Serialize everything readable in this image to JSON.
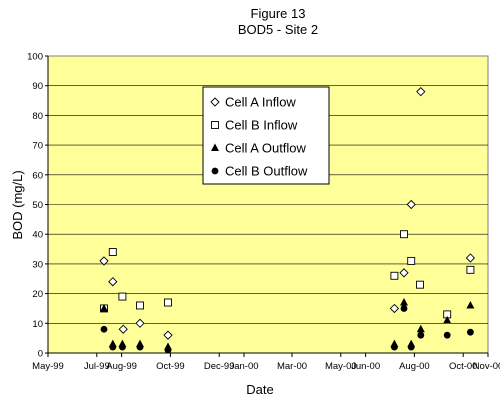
{
  "chart_data": {
    "type": "scatter",
    "title": "Figure 13",
    "subtitle": "BOD5 - Site 2",
    "xlabel": "Date",
    "ylabel": "BOD  (mg/L)",
    "xlim": [
      "1999-05-01",
      "2000-11-01"
    ],
    "ylim": [
      0,
      100
    ],
    "yticks": [
      0,
      10,
      20,
      30,
      40,
      50,
      60,
      70,
      80,
      90,
      100
    ],
    "xticks": [
      {
        "date": "1999-05-01",
        "label": "May-99"
      },
      {
        "date": "1999-07-01",
        "label": "Jul-99"
      },
      {
        "date": "1999-08-01",
        "label": "Aug-99"
      },
      {
        "date": "1999-10-01",
        "label": "Oct-99"
      },
      {
        "date": "1999-12-01",
        "label": "Dec-99"
      },
      {
        "date": "2000-01-01",
        "label": "Jan-00"
      },
      {
        "date": "2000-03-01",
        "label": "Mar-00"
      },
      {
        "date": "2000-05-01",
        "label": "May-00"
      },
      {
        "date": "2000-06-01",
        "label": "Jun-00"
      },
      {
        "date": "2000-08-01",
        "label": "Aug-00"
      },
      {
        "date": "2000-10-01",
        "label": "Oct-00"
      },
      {
        "date": "2000-11-01",
        "label": "Nov-00"
      }
    ],
    "grid": "horizontal",
    "plot_background": "#ffff99",
    "legend_position": "upper-center",
    "series": [
      {
        "name": "Cell A Inflow",
        "marker": "diamond-open",
        "points": [
          {
            "x": "1999-07-10",
            "y": 31
          },
          {
            "x": "1999-07-21",
            "y": 24
          },
          {
            "x": "1999-08-03",
            "y": 8
          },
          {
            "x": "1999-08-24",
            "y": 10
          },
          {
            "x": "1999-09-28",
            "y": 6
          },
          {
            "x": "2000-07-07",
            "y": 15
          },
          {
            "x": "2000-07-19",
            "y": 27
          },
          {
            "x": "2000-07-28",
            "y": 50
          },
          {
            "x": "2000-08-09",
            "y": 88
          },
          {
            "x": "2000-10-10",
            "y": 32
          }
        ]
      },
      {
        "name": "Cell B Inflow",
        "marker": "square-open",
        "points": [
          {
            "x": "1999-07-10",
            "y": 15
          },
          {
            "x": "1999-07-21",
            "y": 34
          },
          {
            "x": "1999-08-02",
            "y": 19
          },
          {
            "x": "1999-08-24",
            "y": 16
          },
          {
            "x": "1999-09-28",
            "y": 17
          },
          {
            "x": "2000-07-07",
            "y": 26
          },
          {
            "x": "2000-07-19",
            "y": 40
          },
          {
            "x": "2000-07-28",
            "y": 31
          },
          {
            "x": "2000-08-08",
            "y": 23
          },
          {
            "x": "2000-09-11",
            "y": 13
          },
          {
            "x": "2000-10-10",
            "y": 28
          }
        ]
      },
      {
        "name": "Cell A Outflow",
        "marker": "triangle-filled",
        "points": [
          {
            "x": "1999-07-10",
            "y": 15
          },
          {
            "x": "1999-07-21",
            "y": 3
          },
          {
            "x": "1999-08-02",
            "y": 3
          },
          {
            "x": "1999-08-24",
            "y": 3
          },
          {
            "x": "1999-09-28",
            "y": 2
          },
          {
            "x": "2000-07-07",
            "y": 3
          },
          {
            "x": "2000-07-19",
            "y": 17
          },
          {
            "x": "2000-07-28",
            "y": 3
          },
          {
            "x": "2000-08-09",
            "y": 8
          },
          {
            "x": "2000-09-11",
            "y": 11
          },
          {
            "x": "2000-10-10",
            "y": 16
          }
        ]
      },
      {
        "name": "Cell B Outflow",
        "marker": "circle-filled",
        "points": [
          {
            "x": "1999-07-10",
            "y": 8
          },
          {
            "x": "1999-07-21",
            "y": 2
          },
          {
            "x": "1999-08-02",
            "y": 2
          },
          {
            "x": "1999-08-24",
            "y": 2
          },
          {
            "x": "1999-09-28",
            "y": 1
          },
          {
            "x": "2000-07-07",
            "y": 2
          },
          {
            "x": "2000-07-19",
            "y": 15
          },
          {
            "x": "2000-07-28",
            "y": 2
          },
          {
            "x": "2000-08-09",
            "y": 6
          },
          {
            "x": "2000-09-11",
            "y": 6
          },
          {
            "x": "2000-10-10",
            "y": 7
          }
        ]
      }
    ]
  }
}
